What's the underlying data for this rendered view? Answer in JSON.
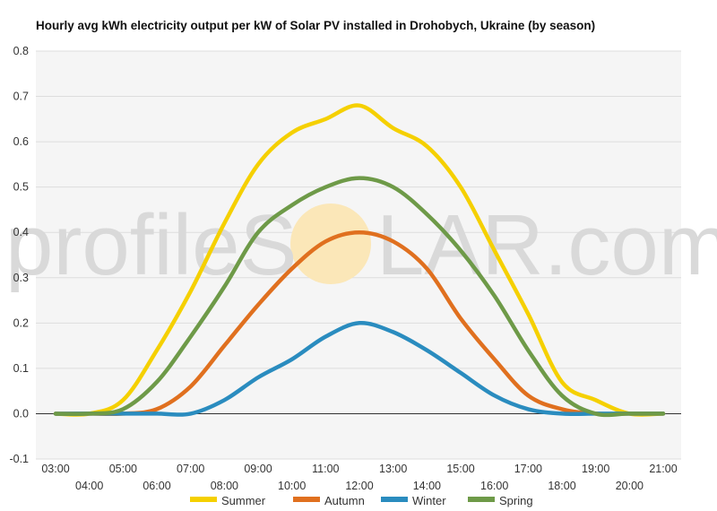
{
  "watermark": {
    "text_left": "profileS",
    "text_right": "LAR.com",
    "sun_color": "#fbe7b8"
  },
  "chart_data": {
    "type": "line",
    "title": "Hourly avg kWh electricity output per kW of Solar PV installed in Drohobych, Ukraine (by season)",
    "xlabel": "",
    "ylabel": "",
    "x": [
      "03:00",
      "04:00",
      "05:00",
      "06:00",
      "07:00",
      "08:00",
      "09:00",
      "10:00",
      "11:00",
      "12:00",
      "13:00",
      "14:00",
      "15:00",
      "16:00",
      "17:00",
      "18:00",
      "19:00",
      "20:00",
      "21:00"
    ],
    "ylim": [
      -0.1,
      0.8
    ],
    "yticks": [
      -0.1,
      0.0,
      0.1,
      0.2,
      0.3,
      0.4,
      0.5,
      0.6,
      0.7,
      0.8
    ],
    "ytick_labels": [
      "-0.1",
      "0.0",
      "0.1",
      "0.2",
      "0.3",
      "0.4",
      "0.5",
      "0.6",
      "0.7",
      "0.8"
    ],
    "grid": true,
    "legend_position": "bottom",
    "series": [
      {
        "name": "Summer",
        "color": "#f5d000",
        "values": [
          0,
          0,
          0.03,
          0.14,
          0.27,
          0.42,
          0.55,
          0.62,
          0.65,
          0.68,
          0.63,
          0.59,
          0.5,
          0.36,
          0.22,
          0.07,
          0.03,
          0,
          0
        ]
      },
      {
        "name": "Autumn",
        "color": "#e0701f",
        "values": [
          0,
          0,
          0,
          0.01,
          0.06,
          0.15,
          0.24,
          0.32,
          0.38,
          0.4,
          0.38,
          0.32,
          0.21,
          0.12,
          0.04,
          0.01,
          0,
          0,
          0
        ]
      },
      {
        "name": "Winter",
        "color": "#2a8cbf",
        "values": [
          0,
          0,
          0,
          0,
          0,
          0.03,
          0.08,
          0.12,
          0.17,
          0.2,
          0.18,
          0.14,
          0.09,
          0.04,
          0.01,
          0,
          0,
          0,
          0
        ]
      },
      {
        "name": "Spring",
        "color": "#6e9a48",
        "values": [
          0,
          0,
          0.01,
          0.07,
          0.17,
          0.28,
          0.4,
          0.46,
          0.5,
          0.52,
          0.5,
          0.44,
          0.36,
          0.26,
          0.14,
          0.04,
          0,
          0,
          0
        ]
      }
    ]
  }
}
